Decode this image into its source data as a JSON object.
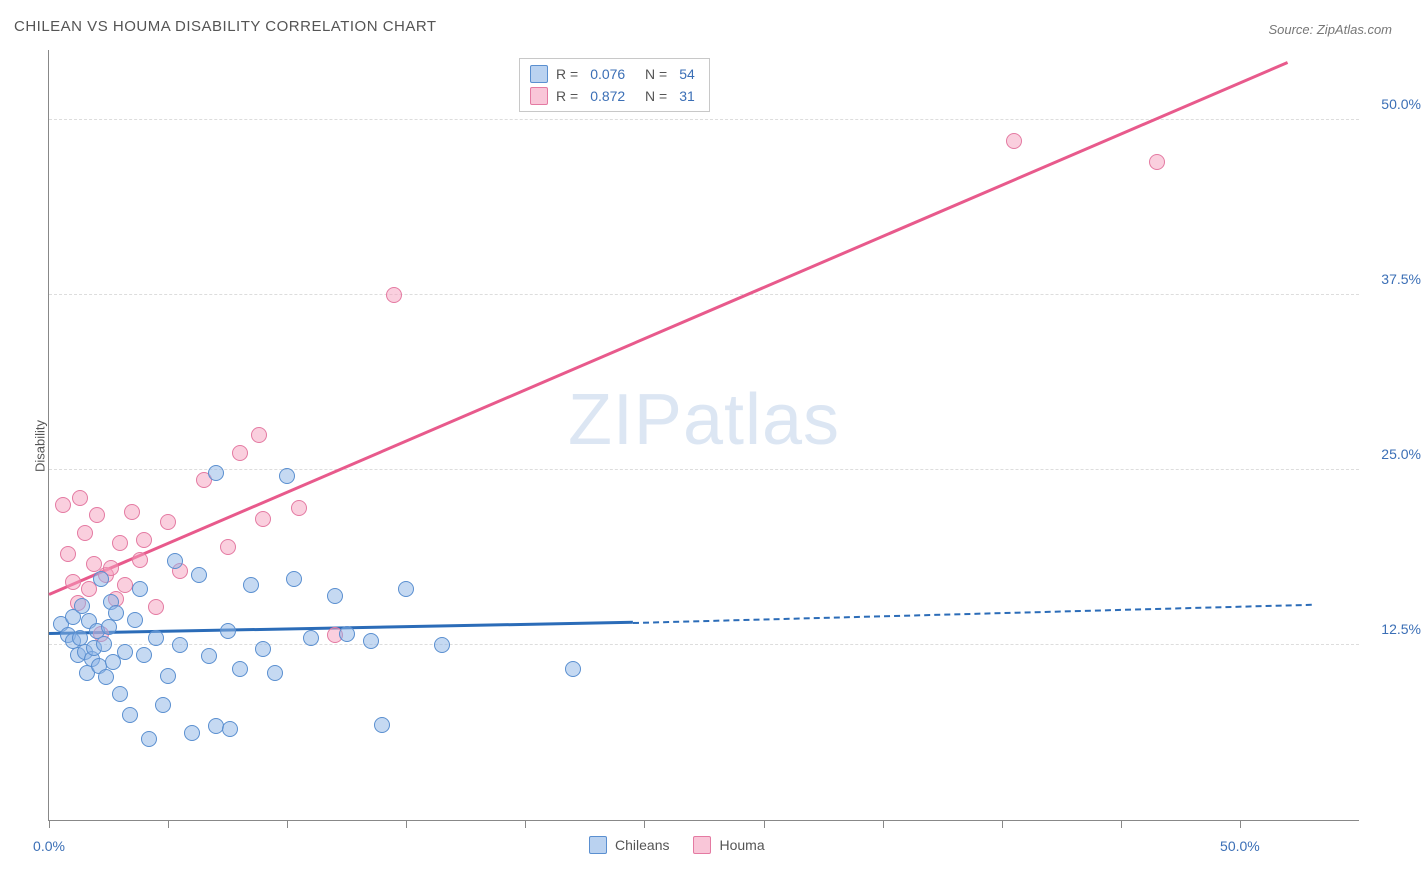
{
  "title": "CHILEAN VS HOUMA DISABILITY CORRELATION CHART",
  "source": "Source: ZipAtlas.com",
  "y_axis_label": "Disability",
  "watermark_bold": "ZIP",
  "watermark_light": "atlas",
  "chart": {
    "type": "scatter",
    "background_color": "#ffffff",
    "grid_color": "#dddddd",
    "axis_color": "#888888",
    "text_color": "#555555",
    "value_color": "#3b6fb6",
    "xlim": [
      0,
      55
    ],
    "ylim": [
      0,
      55
    ],
    "y_ticks": [
      12.5,
      25.0,
      37.5,
      50.0
    ],
    "y_tick_labels": [
      "12.5%",
      "25.0%",
      "37.5%",
      "50.0%"
    ],
    "x_ticks": [
      0,
      5,
      10,
      15,
      20,
      25,
      30,
      35,
      40,
      45,
      50
    ],
    "x_tick_labels": {
      "0": "0.0%",
      "50": "50.0%"
    },
    "marker_size": 16,
    "series": {
      "chileans": {
        "label": "Chileans",
        "fill_color": "rgba(140,180,230,0.5)",
        "stroke_color": "#5a8fd0",
        "r": "0.076",
        "n": "54",
        "trend_line_color": "#2b6cb8",
        "trend_start": [
          0,
          13.2
        ],
        "trend_solid_end": [
          24.5,
          14.0
        ],
        "trend_dash_end": [
          53,
          15.3
        ],
        "points": [
          [
            0.5,
            14.0
          ],
          [
            0.8,
            13.2
          ],
          [
            1.0,
            14.5
          ],
          [
            1.0,
            12.8
          ],
          [
            1.2,
            11.8
          ],
          [
            1.3,
            13.0
          ],
          [
            1.4,
            15.3
          ],
          [
            1.5,
            12.0
          ],
          [
            1.6,
            10.5
          ],
          [
            1.7,
            14.2
          ],
          [
            1.8,
            11.5
          ],
          [
            1.9,
            12.3
          ],
          [
            2.0,
            13.5
          ],
          [
            2.1,
            11.0
          ],
          [
            2.2,
            17.2
          ],
          [
            2.3,
            12.6
          ],
          [
            2.4,
            10.2
          ],
          [
            2.5,
            13.8
          ],
          [
            2.6,
            15.6
          ],
          [
            2.7,
            11.3
          ],
          [
            2.8,
            14.8
          ],
          [
            3.0,
            9.0
          ],
          [
            3.2,
            12.0
          ],
          [
            3.4,
            7.5
          ],
          [
            3.6,
            14.3
          ],
          [
            3.8,
            16.5
          ],
          [
            4.0,
            11.8
          ],
          [
            4.2,
            5.8
          ],
          [
            4.5,
            13.0
          ],
          [
            4.8,
            8.2
          ],
          [
            5.0,
            10.3
          ],
          [
            5.3,
            18.5
          ],
          [
            5.5,
            12.5
          ],
          [
            6.0,
            6.2
          ],
          [
            6.3,
            17.5
          ],
          [
            6.7,
            11.7
          ],
          [
            7.0,
            24.8
          ],
          [
            7.0,
            6.7
          ],
          [
            7.5,
            13.5
          ],
          [
            7.6,
            6.5
          ],
          [
            8.0,
            10.8
          ],
          [
            8.5,
            16.8
          ],
          [
            9.0,
            12.2
          ],
          [
            9.5,
            10.5
          ],
          [
            10.0,
            24.6
          ],
          [
            10.3,
            17.2
          ],
          [
            11.0,
            13.0
          ],
          [
            12.0,
            16.0
          ],
          [
            12.5,
            13.3
          ],
          [
            13.5,
            12.8
          ],
          [
            14.0,
            6.8
          ],
          [
            15.0,
            16.5
          ],
          [
            16.5,
            12.5
          ],
          [
            22.0,
            10.8
          ]
        ]
      },
      "houma": {
        "label": "Houma",
        "fill_color": "rgba(245,160,190,0.5)",
        "stroke_color": "#e47aa2",
        "r": "0.872",
        "n": " 31",
        "trend_line_color": "#e85a8c",
        "trend_start": [
          0,
          16.0
        ],
        "trend_solid_end": [
          52,
          54.0
        ],
        "points": [
          [
            0.6,
            22.5
          ],
          [
            0.8,
            19.0
          ],
          [
            1.0,
            17.0
          ],
          [
            1.2,
            15.5
          ],
          [
            1.3,
            23.0
          ],
          [
            1.5,
            20.5
          ],
          [
            1.7,
            16.5
          ],
          [
            1.9,
            18.3
          ],
          [
            2.0,
            21.8
          ],
          [
            2.2,
            13.3
          ],
          [
            2.4,
            17.5
          ],
          [
            2.6,
            18.0
          ],
          [
            2.8,
            15.8
          ],
          [
            3.0,
            19.8
          ],
          [
            3.2,
            16.8
          ],
          [
            3.5,
            22.0
          ],
          [
            3.8,
            18.6
          ],
          [
            4.0,
            20.0
          ],
          [
            4.5,
            15.2
          ],
          [
            5.0,
            21.3
          ],
          [
            5.5,
            17.8
          ],
          [
            6.5,
            24.3
          ],
          [
            7.5,
            19.5
          ],
          [
            8.0,
            26.2
          ],
          [
            8.8,
            27.5
          ],
          [
            9.0,
            21.5
          ],
          [
            10.5,
            22.3
          ],
          [
            12.0,
            13.2
          ],
          [
            14.5,
            37.5
          ],
          [
            40.5,
            48.5
          ],
          [
            46.5,
            47.0
          ]
        ]
      }
    }
  }
}
